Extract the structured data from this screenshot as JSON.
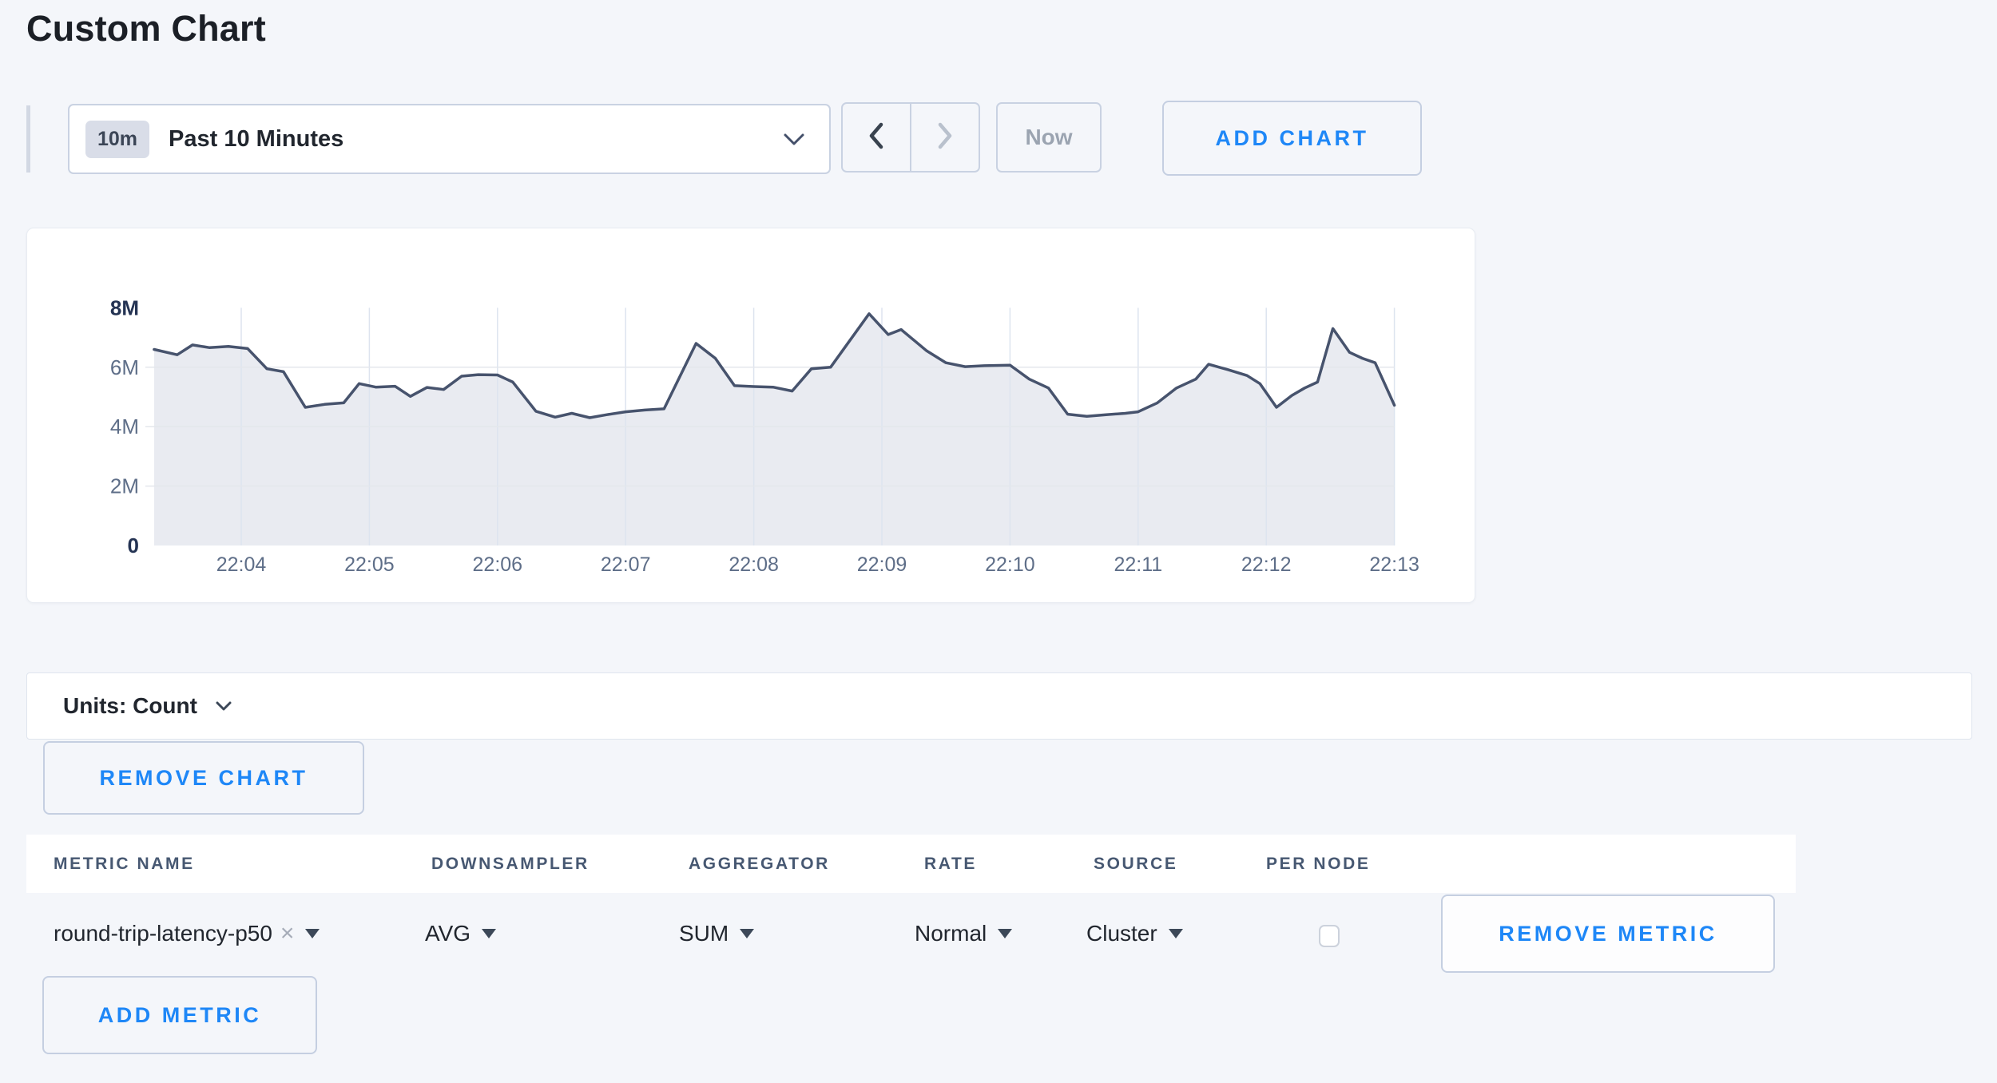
{
  "page": {
    "title": "Custom Chart"
  },
  "colors": {
    "accent_blue": "#1e87f7",
    "page_background": "#f4f6fa",
    "card_background": "#ffffff",
    "control_border": "#c9d2e2",
    "header_text": "#475872",
    "disabled_text": "#9ba4b1"
  },
  "toolbar": {
    "time_window_badge": "10m",
    "time_window_label": "Past 10 Minutes",
    "now_label": "Now",
    "add_chart_label": "ADD CHART"
  },
  "units_bar": {
    "label": "Units: Count"
  },
  "chart_buttons": {
    "remove_chart_label": "REMOVE CHART"
  },
  "metrics_table": {
    "headers": [
      "METRIC NAME",
      "DOWNSAMPLER",
      "AGGREGATOR",
      "RATE",
      "SOURCE",
      "PER NODE"
    ],
    "row": {
      "metric_name": "round-trip-latency-p50",
      "downsampler": "AVG",
      "aggregator": "SUM",
      "rate": "Normal",
      "source": "Cluster",
      "per_node_checked": false
    },
    "remove_metric_label": "REMOVE METRIC",
    "add_metric_label": "ADD METRIC"
  },
  "icons": {
    "remove_tag": "×"
  },
  "chart_data": {
    "type": "area",
    "title": "",
    "xlabel": "",
    "ylabel": "",
    "units": "Count",
    "grid": true,
    "legend": "none",
    "x_axis": {
      "ticks": [
        {
          "m": 4,
          "label": "22:04"
        },
        {
          "m": 5,
          "label": "22:05"
        },
        {
          "m": 6,
          "label": "22:06"
        },
        {
          "m": 7,
          "label": "22:07"
        },
        {
          "m": 8,
          "label": "22:08"
        },
        {
          "m": 9,
          "label": "22:09"
        },
        {
          "m": 10,
          "label": "22:10"
        },
        {
          "m": 11,
          "label": "22:11"
        },
        {
          "m": 12,
          "label": "22:12"
        },
        {
          "m": 13,
          "label": "22:13"
        }
      ],
      "range_minutes": [
        3.32,
        13.0
      ]
    },
    "y_axis": {
      "lim": [
        0,
        8
      ],
      "ticks": [
        {
          "v": 8,
          "label": "8M",
          "emphasis": true
        },
        {
          "v": 6,
          "label": "6M",
          "emphasis": false
        },
        {
          "v": 4,
          "label": "4M",
          "emphasis": false
        },
        {
          "v": 2,
          "label": "2M",
          "emphasis": false
        },
        {
          "v": 0,
          "label": "0",
          "emphasis": true
        }
      ]
    },
    "series": [
      {
        "name": "round-trip-latency-p50",
        "x_minutes": [
          3.32,
          3.5,
          3.62,
          3.75,
          3.9,
          4.05,
          4.2,
          4.33,
          4.5,
          4.65,
          4.8,
          4.92,
          5.05,
          5.2,
          5.32,
          5.45,
          5.58,
          5.72,
          5.85,
          6.0,
          6.12,
          6.3,
          6.45,
          6.58,
          6.72,
          6.85,
          7.0,
          7.15,
          7.3,
          7.55,
          7.7,
          7.85,
          8.0,
          8.15,
          8.3,
          8.45,
          8.6,
          8.9,
          9.05,
          9.15,
          9.35,
          9.5,
          9.65,
          9.8,
          10.0,
          10.15,
          10.3,
          10.45,
          10.6,
          10.75,
          10.9,
          11.0,
          11.15,
          11.3,
          11.45,
          11.55,
          11.7,
          11.85,
          11.95,
          12.08,
          12.2,
          12.3,
          12.4,
          12.52,
          12.65,
          12.75,
          12.85,
          13.0
        ],
        "values_millions": [
          6.6,
          6.42,
          6.75,
          6.66,
          6.7,
          6.63,
          5.95,
          5.85,
          4.65,
          4.75,
          4.8,
          5.45,
          5.33,
          5.36,
          5.02,
          5.32,
          5.25,
          5.7,
          5.75,
          5.74,
          5.5,
          4.52,
          4.32,
          4.45,
          4.3,
          4.4,
          4.5,
          4.56,
          4.6,
          6.8,
          6.3,
          5.38,
          5.35,
          5.33,
          5.2,
          5.95,
          6.0,
          7.8,
          7.1,
          7.27,
          6.55,
          6.15,
          6.02,
          6.05,
          6.07,
          5.6,
          5.3,
          4.42,
          4.35,
          4.4,
          4.45,
          4.5,
          4.8,
          5.3,
          5.6,
          6.1,
          5.92,
          5.72,
          5.45,
          4.65,
          5.05,
          5.3,
          5.5,
          7.3,
          6.5,
          6.3,
          6.15,
          4.72
        ]
      }
    ],
    "colors": {
      "line": "#47536d",
      "fill": "#e9ebf1",
      "grid_vertical": "#dde4ef",
      "grid_horizontal": "#e4e7ec",
      "tick_label": "#5e6e88",
      "tick_label_emphasis": "#243353"
    }
  }
}
